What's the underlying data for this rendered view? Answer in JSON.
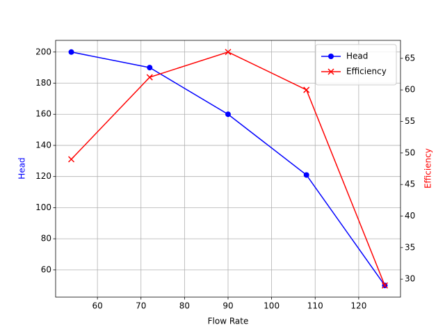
{
  "chart_data": {
    "type": "line",
    "x_label": "Flow Rate",
    "y_label": "Head",
    "y2_label": "Efficiency",
    "x": [
      54,
      72,
      90,
      108,
      126
    ],
    "xlim": [
      50.4,
      129.6
    ],
    "xticks": [
      60,
      70,
      80,
      90,
      100,
      110,
      120
    ],
    "ylim": [
      42.5,
      207.5
    ],
    "yticks": [
      60,
      80,
      100,
      120,
      140,
      160,
      180,
      200
    ],
    "y2lim": [
      27.15,
      67.85
    ],
    "y2ticks": [
      30,
      35,
      40,
      45,
      50,
      55,
      60,
      65
    ],
    "grid": true,
    "legend": "upper right",
    "series": [
      {
        "name": "Head",
        "color": "#0000ff",
        "marker": "circle",
        "values": [
          200,
          190,
          160,
          121,
          50
        ]
      },
      {
        "name": "Efficiency",
        "color": "#ff0000",
        "marker": "x",
        "axis": "y2",
        "values": [
          49,
          62,
          66,
          60,
          29
        ]
      }
    ]
  }
}
